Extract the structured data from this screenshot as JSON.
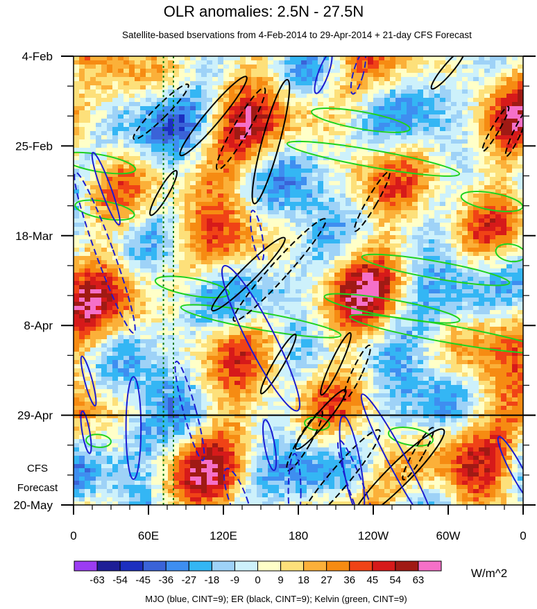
{
  "chart_data": {
    "type": "heatmap",
    "title": "OLR anomalies: 2.5N - 27.5N",
    "subtitle": "Satellite-based bservations from 4-Feb-2014 to 29-Apr-2014 + 21-day CFS Forecast",
    "x_ticks": [
      "0",
      "60E",
      "120E",
      "180",
      "120W",
      "60W",
      "0"
    ],
    "x_tick_lon": [
      0,
      60,
      120,
      180,
      240,
      300,
      360
    ],
    "y_ticks": [
      "4-Feb",
      "25-Feb",
      "18-Mar",
      "8-Apr",
      "29-Apr",
      "20-May"
    ],
    "y_tick_day": [
      0,
      21,
      42,
      63,
      84,
      105
    ],
    "forecast_label_line1": "CFS",
    "forecast_label_line2": "Forecast",
    "forecast_start_day": 84,
    "colorbar": {
      "labels": [
        "-63",
        "-54",
        "-45",
        "-36",
        "-27",
        "-18",
        "-9",
        "0",
        "9",
        "18",
        "27",
        "36",
        "45",
        "54",
        "63"
      ],
      "colors": [
        "#9b3cf2",
        "#1e1e96",
        "#1c2fbf",
        "#3a63d8",
        "#3e8ef0",
        "#34b6f4",
        "#9ed2f7",
        "#cdf1fb",
        "#ffffc8",
        "#fde07a",
        "#fbb039",
        "#f68b12",
        "#f04316",
        "#d61a1a",
        "#a01a14",
        "#f570c8"
      ],
      "units": "W/m^2"
    },
    "footnote": "MJO (blue, CINT=9); ER (black, CINT=9); Kelvin (green, CINT=9)",
    "contour_colors": {
      "mjo": "#1c1cd0",
      "er": "#000000",
      "kelvin": "#1ed21e"
    },
    "reference_lon": [
      72,
      80
    ],
    "mjo_contours": [
      {
        "lon": 26,
        "day": 31,
        "rx": 4,
        "ry": 9,
        "rot": -20,
        "dash": false
      },
      {
        "lon": 25,
        "day": 46,
        "rx": 7,
        "ry": 20,
        "rot": -20,
        "dash": true
      },
      {
        "lon": 12,
        "day": 76,
        "rx": 3,
        "ry": 6,
        "rot": -15,
        "dash": false
      },
      {
        "lon": 10,
        "day": 88,
        "rx": 3,
        "ry": 5,
        "rot": -10,
        "dash": false
      },
      {
        "lon": 48,
        "day": 87,
        "rx": 6,
        "ry": 12,
        "rot": 0,
        "dash": false
      },
      {
        "lon": 93,
        "day": 83,
        "rx": 5,
        "ry": 12,
        "rot": -15,
        "dash": true
      },
      {
        "lon": 150,
        "day": 66,
        "rx": 11,
        "ry": 19,
        "rot": -27,
        "dash": false
      },
      {
        "lon": 147,
        "day": 42,
        "rx": 4,
        "ry": 6,
        "rot": -10,
        "dash": true
      },
      {
        "lon": 157,
        "day": 91,
        "rx": 4,
        "ry": 6,
        "rot": -10,
        "dash": false
      },
      {
        "lon": 132,
        "day": 104,
        "rx": 7,
        "ry": 8,
        "rot": -20,
        "dash": true
      },
      {
        "lon": 177,
        "day": 102,
        "rx": 5,
        "ry": 9,
        "rot": 0,
        "dash": true
      },
      {
        "lon": 223,
        "day": 96,
        "rx": 7,
        "ry": 12,
        "rot": -10,
        "dash": false
      },
      {
        "lon": 229,
        "day": 103,
        "rx": 6,
        "ry": 14,
        "rot": -20,
        "dash": true
      },
      {
        "lon": 260,
        "day": 95,
        "rx": 7,
        "ry": 18,
        "rot": -28,
        "dash": false
      },
      {
        "lon": 355,
        "day": 97,
        "rx": 5,
        "ry": 9,
        "rot": -28,
        "dash": false
      },
      {
        "lon": 200,
        "day": 4,
        "rx": 4,
        "ry": 5,
        "rot": 20,
        "dash": false
      },
      {
        "lon": 228,
        "day": 4,
        "rx": 4,
        "ry": 5,
        "rot": 15,
        "dash": true
      }
    ],
    "er_contours": [
      {
        "lon": 70,
        "day": 13,
        "rx": 5,
        "ry": 9,
        "rot": 45,
        "dash": true
      },
      {
        "lon": 112,
        "day": 14,
        "rx": 6,
        "ry": 12,
        "rot": 40,
        "dash": false
      },
      {
        "lon": 134,
        "day": 17,
        "rx": 6,
        "ry": 11,
        "rot": 30,
        "dash": true
      },
      {
        "lon": 158,
        "day": 20,
        "rx": 7,
        "ry": 15,
        "rot": 15,
        "dash": false
      },
      {
        "lon": 72,
        "day": 32,
        "rx": 4,
        "ry": 6,
        "rot": 30,
        "dash": false
      },
      {
        "lon": 140,
        "day": 51,
        "rx": 6,
        "ry": 12,
        "rot": 45,
        "dash": false
      },
      {
        "lon": 165,
        "day": 50,
        "rx": 7,
        "ry": 16,
        "rot": 42,
        "dash": true
      },
      {
        "lon": 164,
        "day": 72,
        "rx": 4,
        "ry": 8,
        "rot": 30,
        "dash": false
      },
      {
        "lon": 210,
        "day": 72,
        "rx": 4,
        "ry": 8,
        "rot": 25,
        "dash": false
      },
      {
        "lon": 227,
        "day": 74,
        "rx": 4,
        "ry": 7,
        "rot": 25,
        "dash": true
      },
      {
        "lon": 239,
        "day": 34,
        "rx": 4,
        "ry": 8,
        "rot": 30,
        "dash": true
      },
      {
        "lon": 198,
        "day": 85,
        "rx": 5,
        "ry": 9,
        "rot": 40,
        "dash": false
      },
      {
        "lon": 185,
        "day": 90,
        "rx": 5,
        "ry": 8,
        "rot": 30,
        "dash": true
      },
      {
        "lon": 212,
        "day": 99,
        "rx": 8,
        "ry": 15,
        "rot": 40,
        "dash": true
      },
      {
        "lon": 260,
        "day": 98,
        "rx": 9,
        "ry": 15,
        "rot": 45,
        "dash": false
      },
      {
        "lon": 276,
        "day": 93,
        "rx": 4,
        "ry": 7,
        "rot": 30,
        "dash": true
      },
      {
        "lon": 300,
        "day": 3,
        "rx": 4,
        "ry": 6,
        "rot": 40,
        "dash": false
      },
      {
        "lon": 338,
        "day": 17,
        "rx": 3,
        "ry": 6,
        "rot": 30,
        "dash": true
      },
      {
        "lon": 355,
        "day": 18,
        "rx": 3,
        "ry": 6,
        "rot": 25,
        "dash": true
      }
    ],
    "kelvin_contours": [
      {
        "lon": 20,
        "day": 25,
        "rx": 30,
        "ry": 2,
        "rot": 10,
        "dash": false
      },
      {
        "lon": 25,
        "day": 36,
        "rx": 24,
        "ry": 2,
        "rot": 10,
        "dash": false
      },
      {
        "lon": 95,
        "day": 54,
        "rx": 30,
        "ry": 2,
        "rot": 10,
        "dash": false
      },
      {
        "lon": 150,
        "day": 62,
        "rx": 65,
        "ry": 2,
        "rot": 10,
        "dash": false
      },
      {
        "lon": 240,
        "day": 24,
        "rx": 70,
        "ry": 2,
        "rot": 10,
        "dash": false
      },
      {
        "lon": 230,
        "day": 15,
        "rx": 40,
        "ry": 2,
        "rot": 10,
        "dash": false
      },
      {
        "lon": 290,
        "day": 50,
        "rx": 60,
        "ry": 2,
        "rot": 10,
        "dash": false
      },
      {
        "lon": 300,
        "day": 65,
        "rx": 80,
        "ry": 2,
        "rot": 10,
        "dash": false
      },
      {
        "lon": 255,
        "day": 59,
        "rx": 55,
        "ry": 2,
        "rot": 10,
        "dash": false
      },
      {
        "lon": 335,
        "day": 34,
        "rx": 25,
        "ry": 2,
        "rot": 10,
        "dash": false
      },
      {
        "lon": 270,
        "day": 89,
        "rx": 18,
        "ry": 2,
        "rot": 10,
        "dash": false
      },
      {
        "lon": 195,
        "day": 86,
        "rx": 10,
        "ry": 1.5,
        "rot": 5,
        "dash": false
      },
      {
        "lon": 20,
        "day": 90,
        "rx": 10,
        "ry": 1.5,
        "rot": 5,
        "dash": false
      },
      {
        "lon": 350,
        "day": 46,
        "rx": 12,
        "ry": 2,
        "rot": 10,
        "dash": false
      }
    ]
  }
}
